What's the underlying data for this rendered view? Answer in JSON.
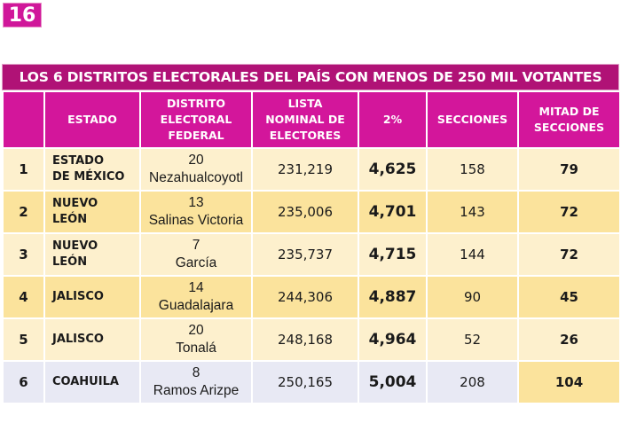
{
  "page_number": "16",
  "table": {
    "title": "LOS 6 DISTRITOS ELECTORALES DEL PAÍS CON MENOS DE 250 MIL VOTANTES",
    "headers": [
      [
        ""
      ],
      [
        "ESTADO"
      ],
      [
        "DISTRITO",
        "ELECTORAL",
        "FEDERAL"
      ],
      [
        "LISTA",
        "NOMINAL DE",
        "ELECTORES"
      ],
      [
        "2%"
      ],
      [
        "SECCIONES"
      ],
      [
        "MITAD DE",
        "SECCIONES"
      ]
    ],
    "rows": [
      {
        "num": "1",
        "estado": [
          "ESTADO",
          "DE MÉXICO"
        ],
        "distrito_num": "20",
        "distrito_nombre": "Nezahualcoyotl",
        "lista_nominal": "231,219",
        "dos_pct": "4,625",
        "secciones": "158",
        "mitad": "79"
      },
      {
        "num": "2",
        "estado": [
          "NUEVO",
          "LEÓN"
        ],
        "distrito_num": "13",
        "distrito_nombre": "Salinas Victoria",
        "lista_nominal": "235,006",
        "dos_pct": "4,701",
        "secciones": "143",
        "mitad": "72"
      },
      {
        "num": "3",
        "estado": [
          "NUEVO",
          "LEÓN"
        ],
        "distrito_num": "7",
        "distrito_nombre": "García",
        "lista_nominal": "235,737",
        "dos_pct": "4,715",
        "secciones": "144",
        "mitad": "72"
      },
      {
        "num": "4",
        "estado": [
          "JALISCO"
        ],
        "distrito_num": "14",
        "distrito_nombre": "Guadalajara",
        "lista_nominal": "244,306",
        "dos_pct": "4,887",
        "secciones": "90",
        "mitad": "45"
      },
      {
        "num": "5",
        "estado": [
          "JALISCO"
        ],
        "distrito_num": "20",
        "distrito_nombre": "Tonalá",
        "lista_nominal": "248,168",
        "dos_pct": "4,964",
        "secciones": "52",
        "mitad": "26"
      },
      {
        "num": "6",
        "estado": [
          "COAHUILA"
        ],
        "distrito_num": "8",
        "distrito_nombre": "Ramos Arizpe",
        "lista_nominal": "250,165",
        "dos_pct": "5,004",
        "secciones": "208",
        "mitad": "104"
      }
    ]
  },
  "colors": {
    "title_bar": "#b01276",
    "header": "#d3169b",
    "row_light": "#fdf0cd",
    "row_dark": "#fbe39c",
    "row_blue": "#e8e9f4"
  }
}
